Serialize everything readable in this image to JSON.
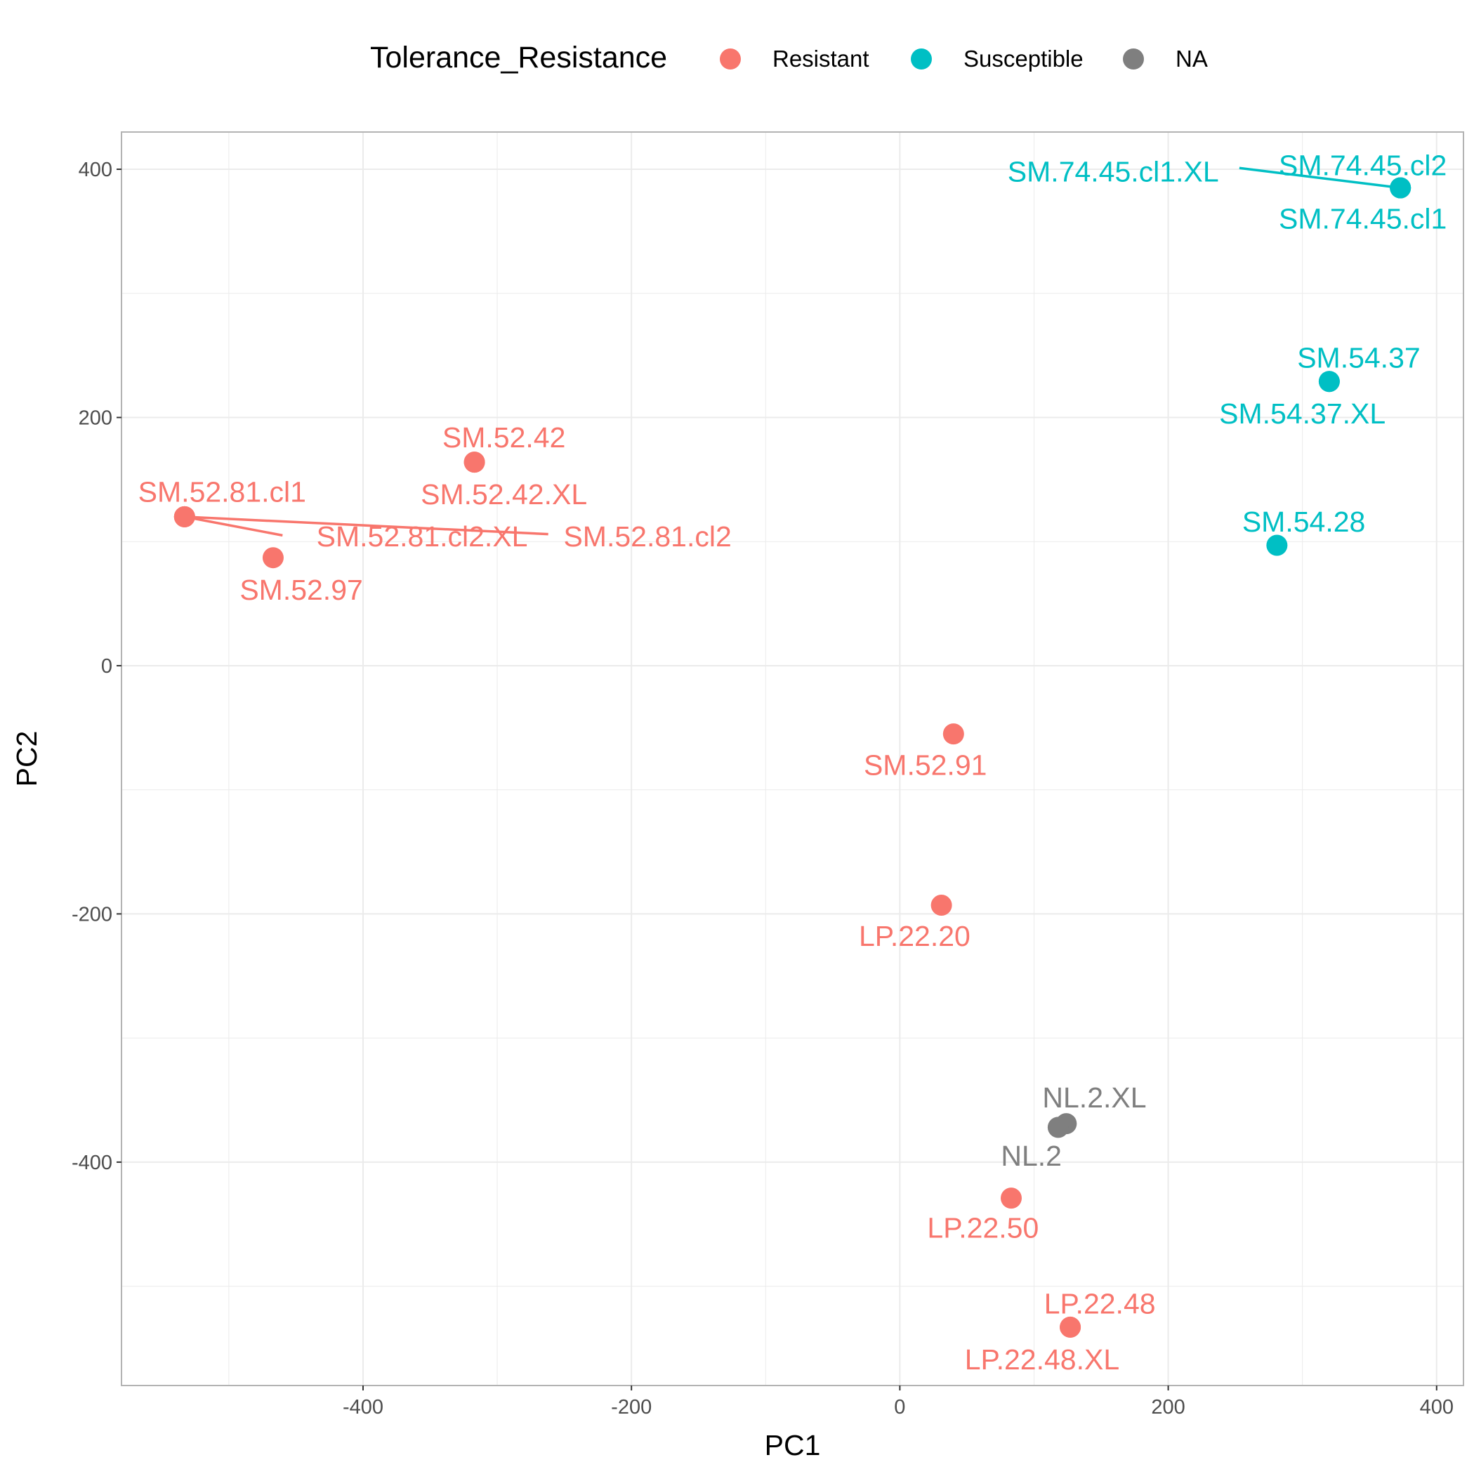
{
  "chart_data": {
    "type": "scatter",
    "title": "",
    "xlabel": "PC1",
    "ylabel": "PC2",
    "xlim": [
      -580,
      420
    ],
    "ylim": [
      -580,
      430
    ],
    "x_ticks": [
      -400,
      -200,
      0,
      200,
      400
    ],
    "y_ticks": [
      -400,
      -200,
      0,
      200,
      400
    ],
    "grid": true,
    "legend": {
      "title": "Tolerance_Resistance",
      "position": "top",
      "entries": [
        {
          "label": "Resistant",
          "color": "#F8766D"
        },
        {
          "label": "Susceptible",
          "color": "#00BFC4"
        },
        {
          "label": "NA",
          "color": "#7F7F7F"
        }
      ]
    },
    "series": [
      {
        "name": "Resistant",
        "color": "#F8766D",
        "points": [
          {
            "label": "SM.52.81.cl1",
            "x": -533,
            "y": 120
          },
          {
            "label": "SM.52.81.cl2.XL",
            "x": -533,
            "y": 120
          },
          {
            "label": "SM.52.81.cl2",
            "x": -533,
            "y": 120
          },
          {
            "label": "SM.52.97",
            "x": -467,
            "y": 87
          },
          {
            "label": "SM.52.42",
            "x": -317,
            "y": 164
          },
          {
            "label": "SM.52.42.XL",
            "x": -317,
            "y": 164
          },
          {
            "label": "SM.52.91",
            "x": 40,
            "y": -55
          },
          {
            "label": "LP.22.20",
            "x": 31,
            "y": -193
          },
          {
            "label": "LP.22.50",
            "x": 83,
            "y": -429
          },
          {
            "label": "LP.22.48",
            "x": 127,
            "y": -533
          },
          {
            "label": "LP.22.48.XL",
            "x": 127,
            "y": -533
          }
        ]
      },
      {
        "name": "Susceptible",
        "color": "#00BFC4",
        "points": [
          {
            "label": "SM.74.45.cl2",
            "x": 373,
            "y": 385
          },
          {
            "label": "SM.74.45.cl1",
            "x": 373,
            "y": 385
          },
          {
            "label": "SM.74.45.cl1.XL",
            "x": 373,
            "y": 385
          },
          {
            "label": "SM.54.37",
            "x": 320,
            "y": 229
          },
          {
            "label": "SM.54.37.XL",
            "x": 320,
            "y": 229
          },
          {
            "label": "SM.54.28",
            "x": 281,
            "y": 97
          }
        ]
      },
      {
        "name": "NA",
        "color": "#7F7F7F",
        "points": [
          {
            "label": "NL.2.XL",
            "x": 124,
            "y": -369
          },
          {
            "label": "NL.2",
            "x": 118,
            "y": -372
          }
        ]
      }
    ],
    "text_labels": [
      {
        "text": "SM.52.81.cl1",
        "x": -505,
        "y": 140,
        "series": "Resistant",
        "anchor": "middle"
      },
      {
        "text": "SM.52.81.cl2.XL",
        "x": -356,
        "y": 104,
        "series": "Resistant",
        "anchor": "middle",
        "segment_to": {
          "x": -533,
          "y": 120
        },
        "segment_from": {
          "x": -460,
          "y": 105
        }
      },
      {
        "text": "SM.52.81.cl2",
        "x": -188,
        "y": 104,
        "series": "Resistant",
        "anchor": "middle",
        "segment_to": {
          "x": -533,
          "y": 120
        },
        "segment_from": {
          "x": -262,
          "y": 106
        }
      },
      {
        "text": "SM.52.97",
        "x": -446,
        "y": 61,
        "series": "Resistant",
        "anchor": "middle"
      },
      {
        "text": "SM.52.42",
        "x": -295,
        "y": 184,
        "series": "Resistant",
        "anchor": "middle"
      },
      {
        "text": "SM.52.42.XL",
        "x": -295,
        "y": 138,
        "series": "Resistant",
        "anchor": "middle"
      },
      {
        "text": "SM.52.91",
        "x": 19,
        "y": -80,
        "series": "Resistant",
        "anchor": "middle"
      },
      {
        "text": "LP.22.20",
        "x": 11,
        "y": -218,
        "series": "Resistant",
        "anchor": "middle"
      },
      {
        "text": "LP.22.50",
        "x": 62,
        "y": -453,
        "series": "Resistant",
        "anchor": "middle"
      },
      {
        "text": "LP.22.48",
        "x": 149,
        "y": -514,
        "series": "Resistant",
        "anchor": "middle"
      },
      {
        "text": "LP.22.48.XL",
        "x": 106,
        "y": -559,
        "series": "Resistant",
        "anchor": "middle"
      },
      {
        "text": "SM.74.45.cl2",
        "x": 345,
        "y": 403,
        "series": "Susceptible",
        "anchor": "middle"
      },
      {
        "text": "SM.74.45.cl1",
        "x": 345,
        "y": 360,
        "series": "Susceptible",
        "anchor": "middle"
      },
      {
        "text": "SM.74.45.cl1.XL",
        "x": 159,
        "y": 398,
        "series": "Susceptible",
        "anchor": "middle",
        "segment_to": {
          "x": 373,
          "y": 385
        },
        "segment_from": {
          "x": 253,
          "y": 401
        }
      },
      {
        "text": "SM.54.37",
        "x": 342,
        "y": 248,
        "series": "Susceptible",
        "anchor": "middle"
      },
      {
        "text": "SM.54.37.XL",
        "x": 300,
        "y": 203,
        "series": "Susceptible",
        "anchor": "middle"
      },
      {
        "text": "SM.54.28",
        "x": 301,
        "y": 116,
        "series": "Susceptible",
        "anchor": "middle"
      },
      {
        "text": "NL.2.XL",
        "x": 145,
        "y": -348,
        "series": "NA",
        "anchor": "middle"
      },
      {
        "text": "NL.2",
        "x": 98,
        "y": -395,
        "series": "NA",
        "anchor": "middle"
      }
    ]
  }
}
